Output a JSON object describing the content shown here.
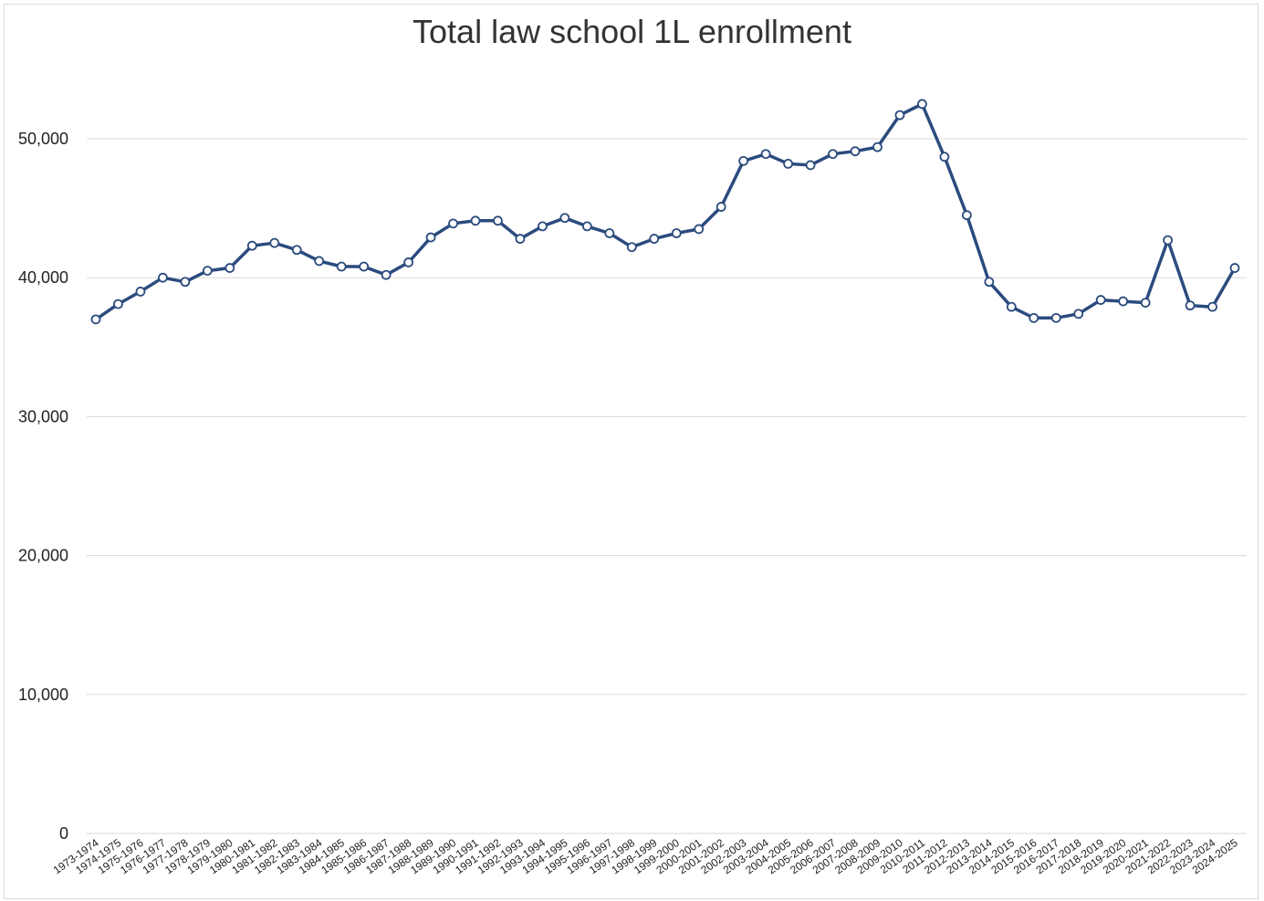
{
  "chart_data": {
    "type": "line",
    "title": "Total law school 1L enrollment",
    "xlabel": "",
    "ylabel": "",
    "ylim": [
      0,
      55000
    ],
    "yticks": [
      0,
      10000,
      20000,
      30000,
      40000,
      50000
    ],
    "ytick_labels": [
      "0",
      "10,000",
      "20,000",
      "30,000",
      "40,000",
      "50,000"
    ],
    "grid": true,
    "legend": "none",
    "line_color": "#2b4b7e",
    "marker_fill": "#ffffff",
    "grid_color": "#d9d9d9",
    "categories": [
      "1973-1974",
      "1974-1975",
      "1975-1976",
      "1976-1977",
      "1977-1978",
      "1978-1979",
      "1979-1980",
      "1980-1981",
      "1981-1982",
      "1982-1983",
      "1983-1984",
      "1984-1985",
      "1985-1986",
      "1986-1987",
      "1987-1988",
      "1988-1989",
      "1989-1990",
      "1990-1991",
      "1991-1992",
      "1992-1993",
      "1993-1994",
      "1994-1995",
      "1995-1996",
      "1996-1997",
      "1997-1998",
      "1998-1999",
      "1999-2000",
      "2000-2001",
      "2001-2002",
      "2002-2003",
      "2003-2004",
      "2004-2005",
      "2005-2006",
      "2006-2007",
      "2007-2008",
      "2008-2009",
      "2009-2010",
      "2010-2011",
      "2011-2012",
      "2012-2013",
      "2013-2014",
      "2014-2015",
      "2015-2016",
      "2016-2017",
      "2017-2018",
      "2018-2019",
      "2019-2020",
      "2020-2021",
      "2021-2022",
      "2022-2023",
      "2023-2024",
      "2024-2025"
    ],
    "series": [
      {
        "values": [
          37000,
          38100,
          39000,
          40000,
          39700,
          40500,
          40700,
          42300,
          42500,
          42000,
          41200,
          40800,
          40800,
          40200,
          41100,
          42900,
          43900,
          44100,
          44100,
          42800,
          43700,
          44300,
          43700,
          43200,
          42200,
          42800,
          43200,
          43500,
          45100,
          48400,
          48900,
          48200,
          48100,
          48900,
          49100,
          49400,
          51700,
          52500,
          48700,
          44500,
          39700,
          37900,
          37100,
          37100,
          37400,
          38400,
          38300,
          38200,
          42700,
          38000,
          37900,
          40700
        ]
      }
    ]
  }
}
